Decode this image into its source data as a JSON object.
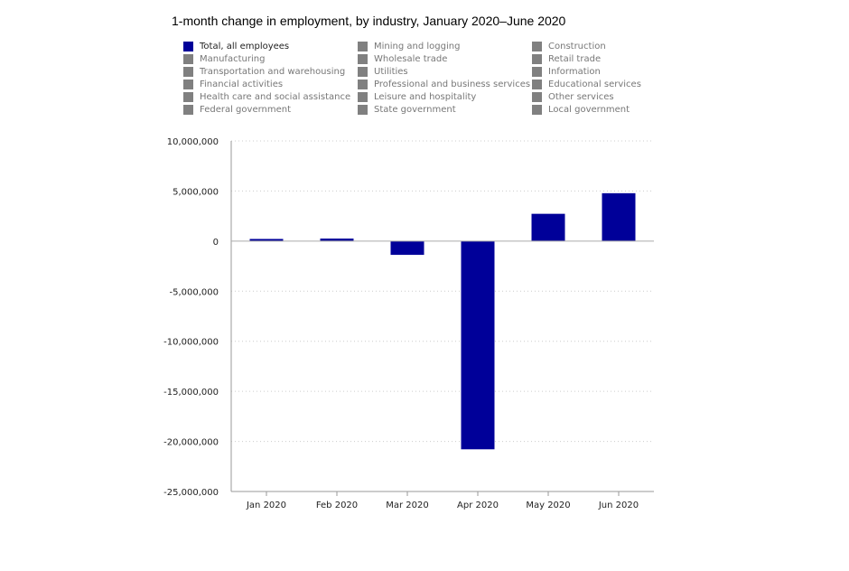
{
  "chart_data": {
    "type": "bar",
    "title": "1-month change in employment, by industry, January 2020–June 2020",
    "xlabel": "",
    "ylabel": "",
    "categories": [
      "Jan 2020",
      "Feb 2020",
      "Mar 2020",
      "Apr 2020",
      "May 2020",
      "Jun 2020"
    ],
    "series": [
      {
        "name": "Total, all employees",
        "color": "#000099",
        "values": [
          214000,
          251000,
          -1373000,
          -20787000,
          2725000,
          4781000
        ]
      }
    ],
    "ylim": [
      -25000000,
      10000000
    ],
    "yticks": [
      {
        "value": 10000000,
        "label": "10,000,000"
      },
      {
        "value": 5000000,
        "label": "5,000,000"
      },
      {
        "value": 0,
        "label": "0"
      },
      {
        "value": -5000000,
        "label": "-5,000,000"
      },
      {
        "value": -10000000,
        "label": "-10,000,000"
      },
      {
        "value": -15000000,
        "label": "-15,000,000"
      },
      {
        "value": -20000000,
        "label": "-20,000,000"
      },
      {
        "value": -25000000,
        "label": "-25,000,000"
      }
    ],
    "grid": true,
    "legend_position": "top",
    "legend": [
      {
        "label": "Total, all employees",
        "active": true,
        "color": "#000099"
      },
      {
        "label": "Mining and logging",
        "active": false,
        "color": "#808080"
      },
      {
        "label": "Construction",
        "active": false,
        "color": "#808080"
      },
      {
        "label": "Manufacturing",
        "active": false,
        "color": "#808080"
      },
      {
        "label": "Wholesale trade",
        "active": false,
        "color": "#808080"
      },
      {
        "label": "Retail trade",
        "active": false,
        "color": "#808080"
      },
      {
        "label": "Transportation and warehousing",
        "active": false,
        "color": "#808080"
      },
      {
        "label": "Utilities",
        "active": false,
        "color": "#808080"
      },
      {
        "label": "Information",
        "active": false,
        "color": "#808080"
      },
      {
        "label": "Financial activities",
        "active": false,
        "color": "#808080"
      },
      {
        "label": "Professional and business services",
        "active": false,
        "color": "#808080"
      },
      {
        "label": "Educational services",
        "active": false,
        "color": "#808080"
      },
      {
        "label": "Health care and social assistance",
        "active": false,
        "color": "#808080"
      },
      {
        "label": "Leisure and hospitality",
        "active": false,
        "color": "#808080"
      },
      {
        "label": "Other services",
        "active": false,
        "color": "#808080"
      },
      {
        "label": "Federal government",
        "active": false,
        "color": "#808080"
      },
      {
        "label": "State government",
        "active": false,
        "color": "#808080"
      },
      {
        "label": "Local government",
        "active": false,
        "color": "#808080"
      }
    ]
  }
}
